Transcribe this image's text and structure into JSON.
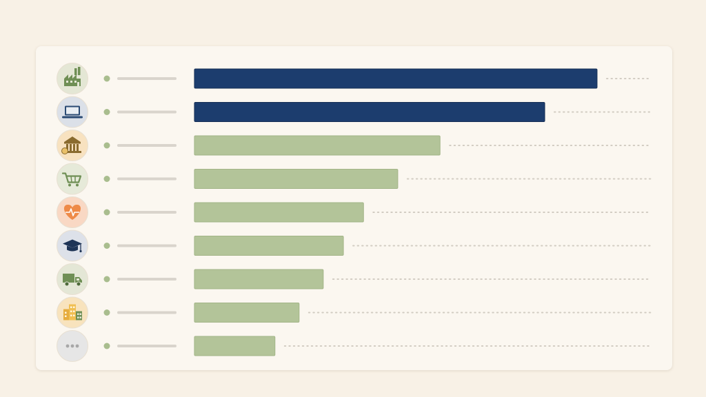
{
  "chart_data": {
    "type": "bar",
    "orientation": "horizontal",
    "categories": [
      "manufacturing",
      "technology",
      "finance",
      "retail",
      "healthcare",
      "education",
      "logistics",
      "real-estate",
      "other"
    ],
    "values": [
      100,
      87,
      61,
      50.5,
      42,
      37,
      32,
      26,
      20
    ],
    "xlim": [
      0,
      100
    ],
    "grid": false,
    "legend": "none",
    "category_icons": [
      "factory-icon",
      "laptop-icon",
      "bank-icon",
      "shopping-cart-icon",
      "heart-pulse-icon",
      "graduation-cap-icon",
      "delivery-truck-icon",
      "buildings-icon",
      "ellipsis-icon"
    ],
    "highlighted": [
      true,
      true,
      false,
      false,
      false,
      false,
      false,
      false,
      false
    ]
  },
  "colors": {
    "background": "#f8f1e6",
    "card": "#fbf7f0",
    "highlight_bar": "#1c3d6e",
    "regular_bar": "#b3c499",
    "label_placeholder": "#d9d4cc",
    "dot": "#a9bd8e",
    "leader_dots": "#d2ccc2",
    "icon_circle_backgrounds": [
      "#e4e7d5",
      "#dbe0e8",
      "#f8e2c0",
      "#e6ead9",
      "#f9d8c4",
      "#dde1e9",
      "#e4e7d6",
      "#f8e3bd",
      "#e6e6e6"
    ]
  }
}
